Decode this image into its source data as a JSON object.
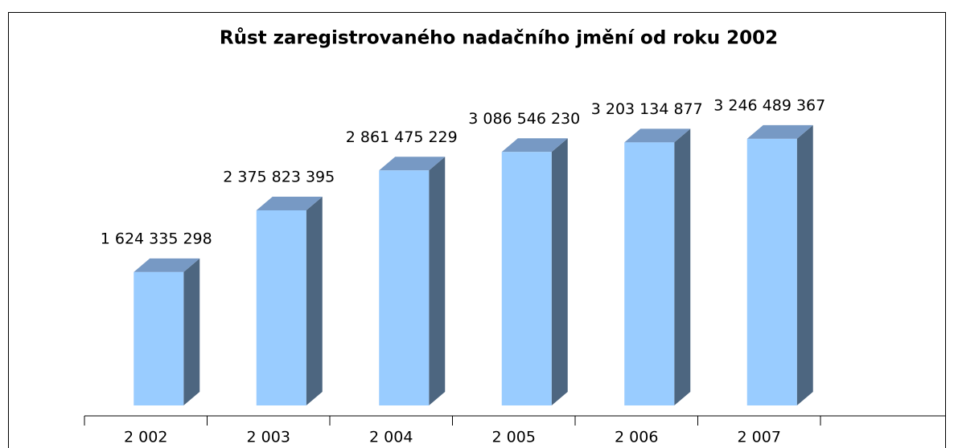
{
  "chart_data": {
    "type": "bar3d",
    "title": "Růst zaregistrovaného nadačního jmění od roku 2002",
    "categories": [
      "2 002",
      "2 003",
      "2 004",
      "2 005",
      "2 006",
      "2 007"
    ],
    "values": [
      1624335298,
      2375823395,
      2861475229,
      3086546230,
      3203134877,
      3246489367
    ],
    "value_labels": [
      "1 624 335 298",
      "2 375 823 395",
      "2 861 475 229",
      "3 086 546 230",
      "3 203 134 877",
      "3 246 489 367"
    ],
    "color": "#99ccff",
    "ylim": [
      0,
      3500000000
    ]
  }
}
